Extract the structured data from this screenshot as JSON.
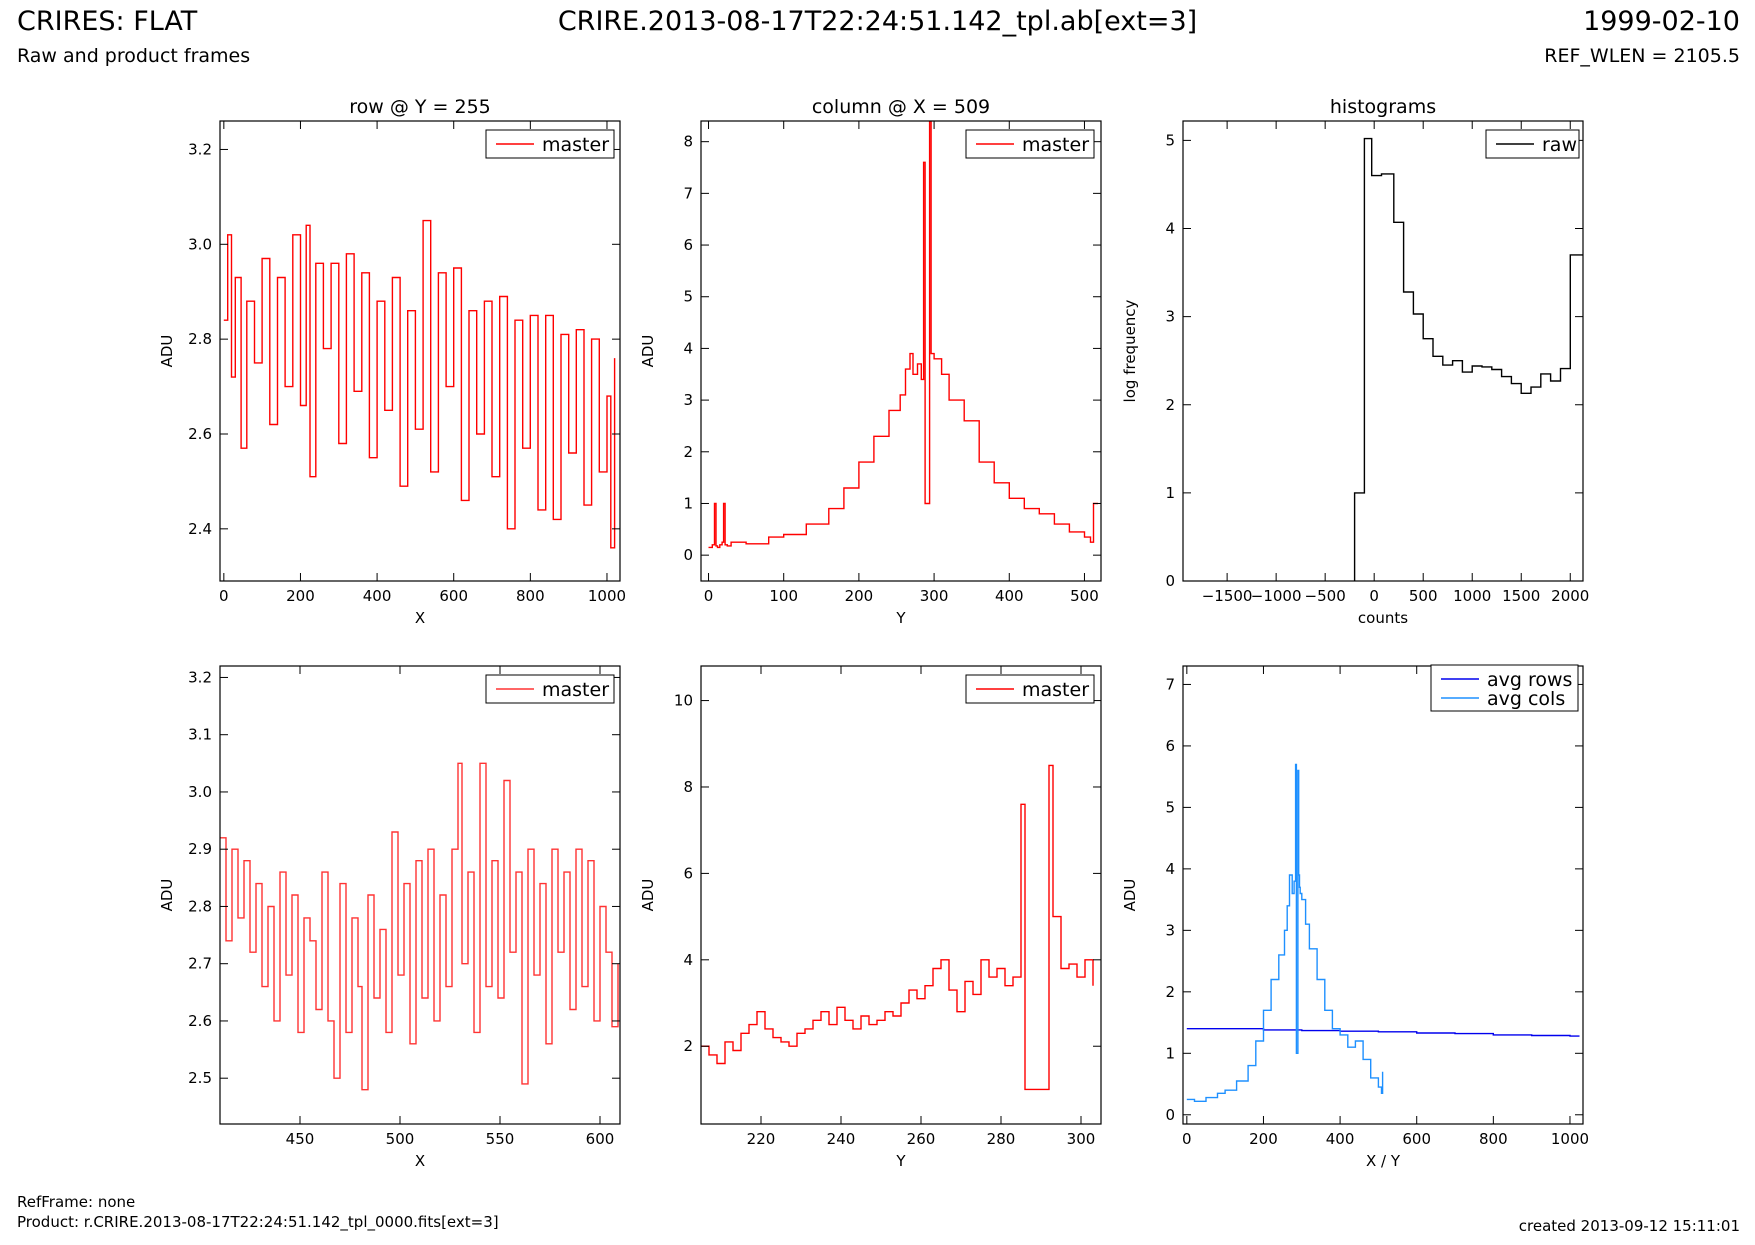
{
  "header": {
    "title": "CRIRES: FLAT",
    "subtitle": "Raw and product frames",
    "file": "CRIRE.2013-08-17T22:24:51.142_tpl.ab[ext=3]",
    "date": "1999-02-10",
    "ref_wlen": "REF_WLEN = 2105.5"
  },
  "footer": {
    "refframe": "RefFrame: none",
    "product": "Product: r.CRIRE.2013-08-17T22:24:51.142_tpl_0000.fits[ext=3]",
    "created": "created 2013-09-12 15:11:01"
  },
  "chart_data": [
    {
      "type": "line",
      "title": "row @ Y = 255",
      "xlabel": "X",
      "ylabel": "ADU",
      "xlim": [
        -10,
        1034
      ],
      "ylim": [
        2.29,
        3.26
      ],
      "xticks": [
        0,
        200,
        400,
        600,
        800,
        1000
      ],
      "yticks": [
        2.4,
        2.6,
        2.8,
        3.0,
        3.2
      ],
      "series": [
        {
          "name": "master",
          "color": "#ff0000",
          "x": [
            0,
            10,
            20,
            30,
            45,
            60,
            80,
            100,
            120,
            140,
            160,
            180,
            200,
            215,
            225,
            240,
            260,
            280,
            300,
            320,
            340,
            360,
            380,
            400,
            420,
            440,
            460,
            480,
            500,
            520,
            540,
            560,
            580,
            600,
            620,
            640,
            660,
            680,
            700,
            720,
            740,
            760,
            780,
            800,
            820,
            840,
            860,
            880,
            900,
            920,
            940,
            960,
            980,
            1000,
            1010,
            1020
          ],
          "y": [
            2.84,
            3.02,
            2.72,
            2.93,
            2.57,
            2.88,
            2.75,
            2.97,
            2.62,
            2.93,
            2.7,
            3.02,
            2.66,
            3.04,
            2.51,
            2.96,
            2.78,
            2.96,
            2.58,
            2.98,
            2.69,
            2.94,
            2.55,
            2.88,
            2.65,
            2.93,
            2.49,
            2.86,
            2.61,
            3.05,
            2.52,
            2.94,
            2.7,
            2.95,
            2.46,
            2.86,
            2.6,
            2.88,
            2.51,
            2.89,
            2.4,
            2.84,
            2.57,
            2.85,
            2.44,
            2.85,
            2.42,
            2.81,
            2.56,
            2.82,
            2.45,
            2.8,
            2.52,
            2.68,
            2.36,
            2.76
          ]
        }
      ]
    },
    {
      "type": "line",
      "title": "column @ X = 509",
      "xlabel": "Y",
      "ylabel": "ADU",
      "xlim": [
        -10,
        522
      ],
      "ylim": [
        -0.5,
        8.4
      ],
      "xticks": [
        0,
        100,
        200,
        300,
        400,
        500
      ],
      "yticks": [
        0,
        1,
        2,
        3,
        4,
        5,
        6,
        7,
        8
      ],
      "series": [
        {
          "name": "master",
          "color": "#ff0000",
          "x": [
            0,
            5,
            8,
            10,
            12,
            15,
            18,
            20,
            22,
            25,
            30,
            50,
            80,
            100,
            130,
            160,
            180,
            200,
            220,
            240,
            255,
            262,
            268,
            272,
            278,
            283,
            286,
            288,
            290,
            292,
            294,
            296,
            300,
            310,
            320,
            340,
            360,
            380,
            400,
            420,
            440,
            460,
            480,
            500,
            508,
            512,
            518
          ],
          "y": [
            0.15,
            0.2,
            1.0,
            0.18,
            0.15,
            0.2,
            0.25,
            1.0,
            0.2,
            0.18,
            0.25,
            0.22,
            0.35,
            0.4,
            0.6,
            0.9,
            1.3,
            1.8,
            2.3,
            2.8,
            3.1,
            3.6,
            3.9,
            3.5,
            3.7,
            3.4,
            7.6,
            1.0,
            1.0,
            1.0,
            8.5,
            3.9,
            3.8,
            3.5,
            3.0,
            2.6,
            1.8,
            1.4,
            1.1,
            0.9,
            0.8,
            0.6,
            0.45,
            0.35,
            0.25,
            1.0,
            1.0
          ]
        }
      ]
    },
    {
      "type": "line",
      "title": "histograms",
      "xlabel": "counts",
      "ylabel": "log frequency",
      "xlim": [
        -1950,
        2130
      ],
      "ylim": [
        0,
        5.22
      ],
      "xticks": [
        -1500,
        -1000,
        -500,
        0,
        500,
        1000,
        1500,
        2000
      ],
      "yticks": [
        0,
        1,
        2,
        3,
        4,
        5
      ],
      "series": [
        {
          "name": "raw",
          "color": "#000000",
          "x": [
            -200,
            -200,
            -100,
            -100,
            -25,
            -25,
            75,
            75,
            200,
            200,
            300,
            300,
            400,
            400,
            500,
            500,
            600,
            600,
            700,
            700,
            800,
            800,
            900,
            900,
            1000,
            1000,
            1100,
            1100,
            1200,
            1200,
            1300,
            1300,
            1400,
            1400,
            1500,
            1500,
            1600,
            1600,
            1700,
            1700,
            1800,
            1800,
            1900,
            1900,
            2000,
            2000,
            2130
          ],
          "y": [
            0,
            1.0,
            1.0,
            5.02,
            5.02,
            4.6,
            4.6,
            4.62,
            4.62,
            4.07,
            4.07,
            3.28,
            3.28,
            3.03,
            3.03,
            2.75,
            2.75,
            2.55,
            2.55,
            2.45,
            2.45,
            2.5,
            2.5,
            2.37,
            2.37,
            2.44,
            2.44,
            2.43,
            2.43,
            2.4,
            2.4,
            2.32,
            2.32,
            2.24,
            2.24,
            2.13,
            2.13,
            2.2,
            2.2,
            2.35,
            2.35,
            2.27,
            2.27,
            2.41,
            2.41,
            3.7,
            3.7
          ]
        }
      ]
    },
    {
      "type": "line",
      "title": "",
      "xlabel": "X",
      "ylabel": "ADU",
      "xlim": [
        410,
        610
      ],
      "ylim": [
        2.42,
        3.22
      ],
      "xticks": [
        450,
        500,
        550,
        600
      ],
      "yticks": [
        2.5,
        2.6,
        2.7,
        2.8,
        2.9,
        3.0,
        3.1,
        3.2
      ],
      "series": [
        {
          "name": "master",
          "color": "#ff3333",
          "x": [
            410,
            413,
            416,
            419,
            422,
            425,
            428,
            431,
            434,
            437,
            440,
            443,
            446,
            449,
            452,
            455,
            458,
            461,
            464,
            467,
            470,
            473,
            476,
            479,
            481,
            484,
            487,
            490,
            493,
            496,
            499,
            502,
            505,
            508,
            511,
            514,
            517,
            520,
            523,
            526,
            529,
            531,
            534,
            537,
            540,
            543,
            546,
            549,
            552,
            555,
            558,
            561,
            564,
            567,
            570,
            573,
            576,
            579,
            582,
            585,
            588,
            591,
            594,
            597,
            600,
            603,
            606,
            609
          ],
          "y": [
            2.92,
            2.74,
            2.9,
            2.78,
            2.88,
            2.72,
            2.84,
            2.66,
            2.8,
            2.6,
            2.86,
            2.68,
            2.82,
            2.58,
            2.78,
            2.74,
            2.62,
            2.86,
            2.6,
            2.5,
            2.84,
            2.58,
            2.78,
            2.66,
            2.48,
            2.82,
            2.64,
            2.76,
            2.58,
            2.93,
            2.68,
            2.84,
            2.56,
            2.88,
            2.64,
            2.9,
            2.6,
            2.82,
            2.66,
            2.9,
            3.05,
            2.7,
            2.86,
            2.58,
            3.05,
            2.66,
            2.88,
            2.64,
            3.02,
            2.72,
            2.86,
            2.49,
            2.9,
            2.68,
            2.84,
            2.56,
            2.9,
            2.72,
            2.86,
            2.62,
            2.9,
            2.66,
            2.88,
            2.6,
            2.8,
            2.72,
            2.59,
            2.7
          ]
        }
      ]
    },
    {
      "type": "line",
      "title": "",
      "xlabel": "Y",
      "ylabel": "ADU",
      "xlim": [
        205,
        305
      ],
      "ylim": [
        0.2,
        10.8
      ],
      "xticks": [
        220,
        240,
        260,
        280,
        300
      ],
      "yticks": [
        2,
        4,
        6,
        8,
        10
      ],
      "series": [
        {
          "name": "master",
          "color": "#ff0000",
          "x": [
            205,
            207,
            209,
            211,
            213,
            215,
            217,
            219,
            221,
            223,
            225,
            227,
            229,
            231,
            233,
            235,
            237,
            239,
            241,
            243,
            245,
            247,
            249,
            251,
            253,
            255,
            257,
            259,
            261,
            263,
            265,
            267,
            269,
            271,
            273,
            275,
            277,
            279,
            281,
            283,
            285,
            286,
            292,
            293,
            295,
            297,
            299,
            301,
            303
          ],
          "y": [
            2.0,
            1.8,
            1.6,
            2.1,
            1.9,
            2.3,
            2.5,
            2.8,
            2.4,
            2.2,
            2.1,
            2.0,
            2.3,
            2.4,
            2.6,
            2.8,
            2.5,
            2.9,
            2.6,
            2.4,
            2.7,
            2.5,
            2.6,
            2.8,
            2.7,
            3.0,
            3.3,
            3.1,
            3.4,
            3.8,
            4.0,
            3.3,
            2.8,
            3.5,
            3.2,
            4.0,
            3.6,
            3.8,
            3.4,
            3.6,
            7.6,
            1.0,
            8.5,
            5.0,
            3.8,
            3.9,
            3.6,
            4.0,
            3.4
          ]
        }
      ]
    },
    {
      "type": "line",
      "title": "",
      "xlabel": "X / Y",
      "ylabel": "ADU",
      "xlim": [
        -10,
        1034
      ],
      "ylim": [
        -0.15,
        7.3
      ],
      "xticks": [
        0,
        200,
        400,
        600,
        800,
        1000
      ],
      "yticks": [
        0,
        1,
        2,
        3,
        4,
        5,
        6,
        7
      ],
      "series": [
        {
          "name": "avg rows",
          "color": "#0000ee",
          "x": [
            0,
            100,
            200,
            300,
            400,
            500,
            600,
            700,
            800,
            900,
            1000,
            1023
          ],
          "y": [
            1.4,
            1.4,
            1.38,
            1.37,
            1.36,
            1.35,
            1.33,
            1.32,
            1.3,
            1.29,
            1.28,
            1.27
          ]
        },
        {
          "name": "avg cols",
          "color": "#1e90ff",
          "x": [
            0,
            20,
            50,
            80,
            100,
            130,
            160,
            180,
            200,
            220,
            240,
            255,
            262,
            268,
            275,
            280,
            284,
            286,
            288,
            290,
            292,
            294,
            296,
            300,
            310,
            320,
            340,
            360,
            380,
            400,
            420,
            440,
            460,
            480,
            500,
            508,
            511
          ],
          "y": [
            0.25,
            0.22,
            0.28,
            0.35,
            0.4,
            0.55,
            0.8,
            1.2,
            1.7,
            2.2,
            2.6,
            3.0,
            3.4,
            3.9,
            3.6,
            3.8,
            5.7,
            1.0,
            1.0,
            5.6,
            3.9,
            3.7,
            3.6,
            3.5,
            3.1,
            2.7,
            2.2,
            1.7,
            1.4,
            1.3,
            1.1,
            1.2,
            0.9,
            0.6,
            0.45,
            0.35,
            0.7
          ]
        }
      ]
    }
  ]
}
